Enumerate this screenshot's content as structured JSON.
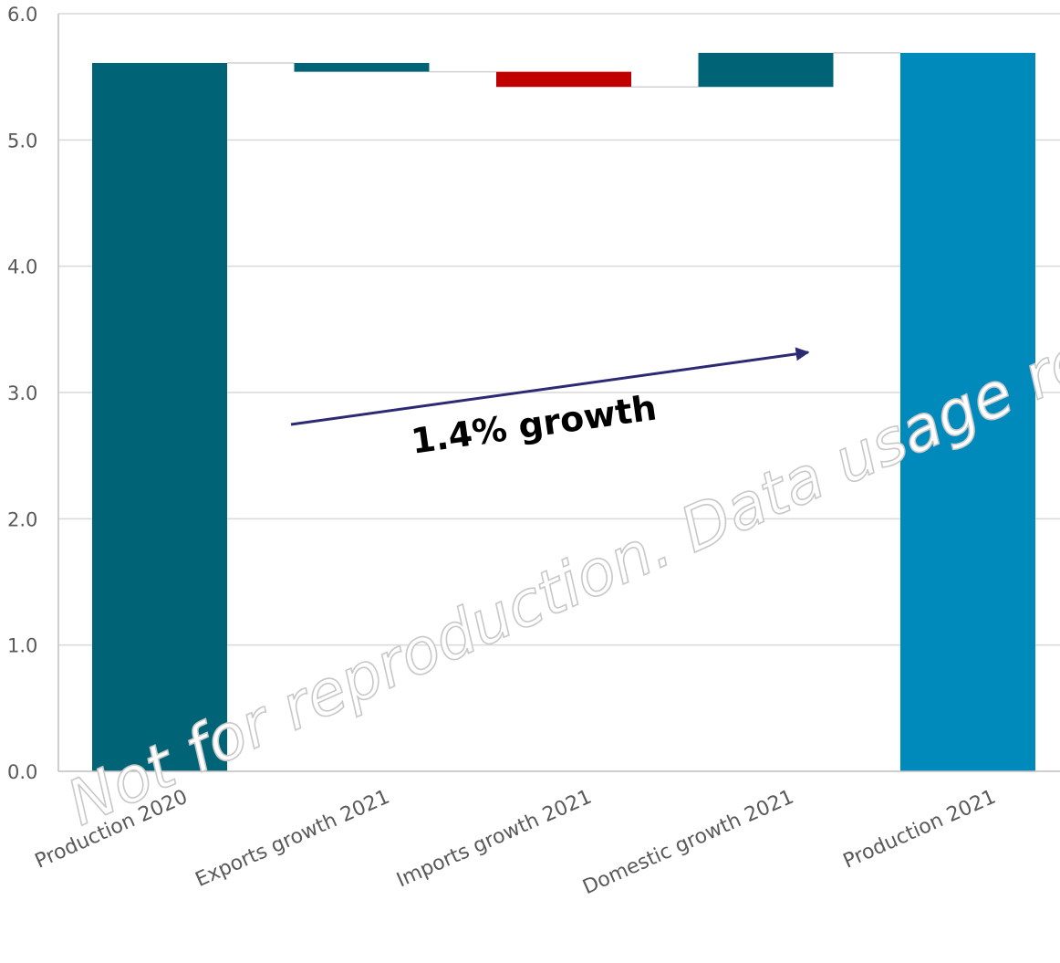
{
  "chart_data": {
    "type": "waterfall",
    "title": "",
    "xlabel": "",
    "ylabel": "",
    "ylim": [
      0,
      6.0
    ],
    "yticks": [
      "0.0",
      "1.0",
      "2.0",
      "3.0",
      "4.0",
      "5.0",
      "6.0"
    ],
    "grid": true,
    "legend": "none",
    "categories": [
      "Production 2020",
      "Exports growth 2021",
      "Imports growth 2021",
      "Domestic growth 2021",
      "Production 2021"
    ],
    "bars": [
      {
        "kind": "total",
        "start": 0,
        "end": 5.61,
        "color": "#006476"
      },
      {
        "kind": "delta",
        "start": 5.61,
        "end": 5.54,
        "color": "#006476"
      },
      {
        "kind": "delta",
        "start": 5.54,
        "end": 5.42,
        "color": "#c00000"
      },
      {
        "kind": "delta",
        "start": 5.42,
        "end": 5.69,
        "color": "#006476"
      },
      {
        "kind": "total",
        "start": 0,
        "end": 5.69,
        "color": "#0089bb"
      }
    ],
    "annotation": {
      "text": "1.4% growth",
      "arrow_color": "#2b2a72"
    }
  },
  "watermark": "Not for reproduction. Data usage requ",
  "colors": {
    "grid": "#d9d9d9",
    "axis": "#bfbfbf",
    "connector": "#d0d0d0"
  }
}
